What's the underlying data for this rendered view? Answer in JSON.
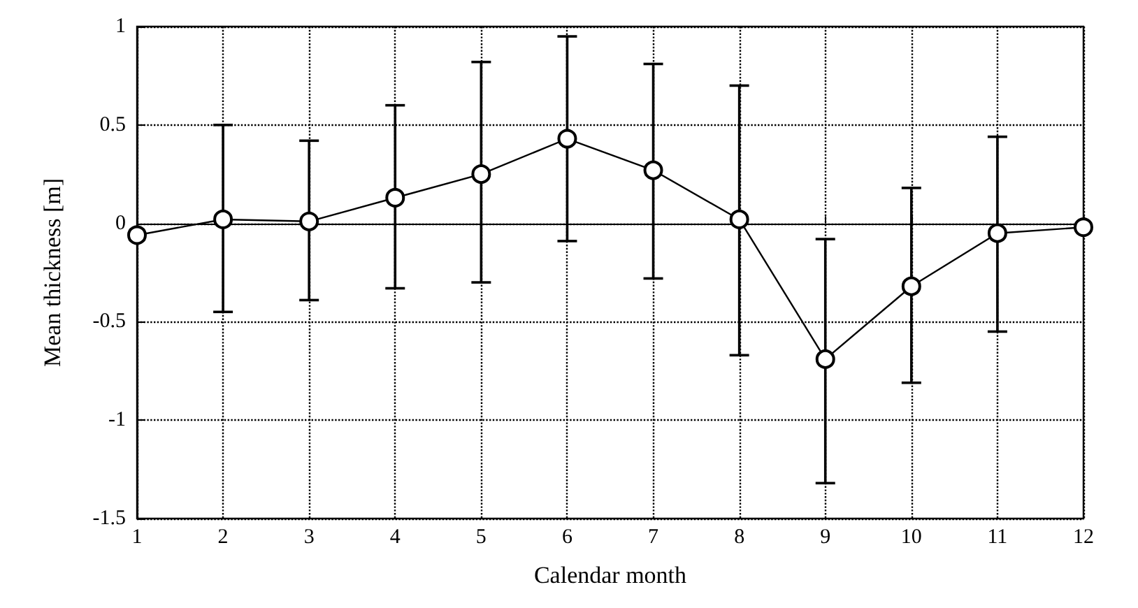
{
  "chart_data": {
    "type": "line",
    "xlabel": "Calendar month",
    "ylabel": "Mean thickness [m]",
    "x": [
      1,
      2,
      3,
      4,
      5,
      6,
      7,
      8,
      9,
      10,
      11,
      12
    ],
    "series": [
      {
        "color": "#000000",
        "values": [
          -0.06,
          0.02,
          0.01,
          0.13,
          0.25,
          0.43,
          0.27,
          0.02,
          -0.69,
          -0.32,
          -0.05,
          -0.02
        ],
        "errors": [
          null,
          [
            -0.45,
            0.5
          ],
          [
            -0.39,
            0.42
          ],
          [
            -0.33,
            0.6
          ],
          [
            -0.3,
            0.82
          ],
          [
            -0.09,
            0.95
          ],
          [
            -0.28,
            0.81
          ],
          [
            -0.67,
            0.7
          ],
          [
            -1.32,
            -0.08
          ],
          [
            -0.81,
            0.18
          ],
          [
            -0.55,
            0.44
          ],
          null
        ]
      }
    ],
    "xlim": [
      1,
      12
    ],
    "xticks": [
      1,
      2,
      3,
      4,
      5,
      6,
      7,
      8,
      9,
      10,
      11,
      12
    ],
    "ylim": [
      -1.5,
      1
    ],
    "yticks": [
      -1.5,
      -1,
      -0.5,
      0,
      0.5,
      1
    ],
    "grid": true,
    "marker": "circle",
    "line_style": "solid"
  }
}
